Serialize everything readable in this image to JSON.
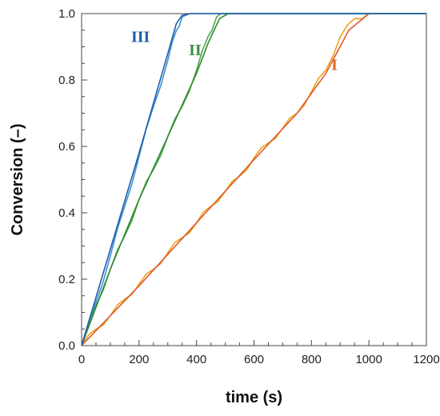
{
  "chart_data": {
    "type": "line",
    "xlabel": "time (s)",
    "ylabel": "Conversion (–)",
    "xlim": [
      0,
      1200
    ],
    "ylim": [
      0,
      1.0
    ],
    "x_ticks": [
      "0",
      "200",
      "400",
      "600",
      "800",
      "1000",
      "1200"
    ],
    "y_ticks": [
      "0.0",
      "0.2",
      "0.4",
      "0.6",
      "0.8",
      "1.0"
    ],
    "grid": false,
    "colors": {
      "I_model": "#E4572E",
      "I_exp": "#E8A317",
      "II_model": "#2E8B2E",
      "II_exp": "#4CA64C",
      "III_model": "#1F5FA8",
      "III_exp": "#3C8FD4",
      "label_I": "#E06A20",
      "label_II": "#3E8E3E",
      "label_III": "#1F5FA8"
    },
    "series": [
      {
        "name": "I",
        "model": {
          "x": [
            0,
            200,
            400,
            600,
            750,
            850,
            930,
            1000,
            1200
          ],
          "y": [
            0,
            0.18,
            0.37,
            0.56,
            0.7,
            0.82,
            0.95,
            1.0,
            1.0
          ]
        },
        "experiment": {
          "x": [
            0,
            50,
            100,
            150,
            200,
            250,
            300,
            350,
            400,
            450,
            500,
            550,
            600,
            650,
            700,
            750,
            800,
            850,
            900,
            950,
            1000,
            1200
          ],
          "y": [
            0,
            0.05,
            0.09,
            0.14,
            0.185,
            0.23,
            0.28,
            0.325,
            0.37,
            0.42,
            0.465,
            0.51,
            0.565,
            0.61,
            0.655,
            0.7,
            0.765,
            0.83,
            0.93,
            0.985,
            1.0,
            1.0
          ]
        }
      },
      {
        "name": "II",
        "model": {
          "x": [
            0,
            100,
            200,
            300,
            400,
            440,
            480,
            510,
            1200
          ],
          "y": [
            0,
            0.23,
            0.44,
            0.63,
            0.82,
            0.91,
            0.985,
            1.0,
            1.0
          ]
        },
        "experiment": {
          "x": [
            0,
            50,
            100,
            150,
            200,
            250,
            300,
            350,
            400,
            440,
            470,
            500,
            530,
            1200
          ],
          "y": [
            0,
            0.12,
            0.23,
            0.33,
            0.44,
            0.53,
            0.63,
            0.72,
            0.83,
            0.93,
            0.99,
            1.0,
            1.0,
            1.0
          ]
        }
      },
      {
        "name": "III",
        "model": {
          "x": [
            0,
            100,
            200,
            300,
            330,
            350,
            380,
            1200
          ],
          "y": [
            0,
            0.29,
            0.58,
            0.88,
            0.97,
            0.995,
            1.0,
            1.0
          ]
        },
        "experiment": {
          "x": [
            0,
            50,
            100,
            150,
            200,
            250,
            300,
            330,
            350,
            400,
            1200
          ],
          "y": [
            0,
            0.13,
            0.27,
            0.42,
            0.57,
            0.72,
            0.86,
            0.95,
            0.99,
            1.0,
            1.0
          ]
        }
      }
    ],
    "annotations": [
      {
        "text": "III",
        "series": "III",
        "x": 205,
        "y": 0.915
      },
      {
        "text": "II",
        "series": "II",
        "x": 395,
        "y": 0.875
      },
      {
        "text": "I",
        "series": "I",
        "x": 880,
        "y": 0.83
      }
    ]
  }
}
